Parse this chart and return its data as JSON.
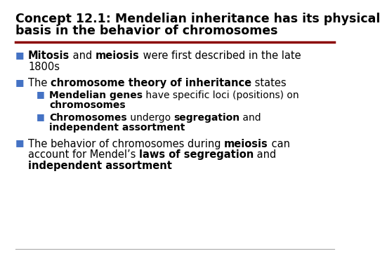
{
  "bg_color": "#ffffff",
  "title_color": "#000000",
  "red_line_color": "#8B0000",
  "gray_line_color": "#aaaaaa",
  "bullet_color": "#4472C4",
  "text_color": "#000000",
  "title_fontsize": 12.5,
  "body_fontsize": 10.5,
  "sub_fontsize": 10.0,
  "bullet_char": "■",
  "title_lines": [
    "Concept 12.1: Mendelian inheritance has its physical",
    "basis in the behavior of chromosomes"
  ],
  "items": [
    {
      "level": 0,
      "lines": [
        [
          {
            "t": "Mitosis",
            "b": true
          },
          {
            "t": " and ",
            "b": false
          },
          {
            "t": "meiosis",
            "b": true
          },
          {
            "t": " were first described in the late",
            "b": false
          }
        ],
        [
          {
            "t": "1800s",
            "b": false
          }
        ]
      ]
    },
    {
      "level": 0,
      "lines": [
        [
          {
            "t": "The ",
            "b": false
          },
          {
            "t": "chromosome theory of inheritance",
            "b": true
          },
          {
            "t": " states",
            "b": false
          }
        ]
      ]
    },
    {
      "level": 1,
      "lines": [
        [
          {
            "t": "Mendelian genes",
            "b": true
          },
          {
            "t": " have specific loci (positions) on",
            "b": false
          }
        ],
        [
          {
            "t": "chromosomes",
            "b": true
          }
        ]
      ]
    },
    {
      "level": 1,
      "lines": [
        [
          {
            "t": "Chromosomes",
            "b": true
          },
          {
            "t": " undergo ",
            "b": false
          },
          {
            "t": "segregation",
            "b": true
          },
          {
            "t": " and",
            "b": false
          }
        ],
        [
          {
            "t": "independent assortment",
            "b": true
          }
        ]
      ]
    },
    {
      "level": 0,
      "lines": [
        [
          {
            "t": "The behavior of chromosomes during ",
            "b": false
          },
          {
            "t": "meiosis",
            "b": true
          },
          {
            "t": " can",
            "b": false
          }
        ],
        [
          {
            "t": "account for Mendel’s ",
            "b": false
          },
          {
            "t": "laws of segregation",
            "b": true
          },
          {
            "t": " and",
            "b": false
          }
        ],
        [
          {
            "t": "independent assortment",
            "b": true
          }
        ]
      ]
    }
  ]
}
